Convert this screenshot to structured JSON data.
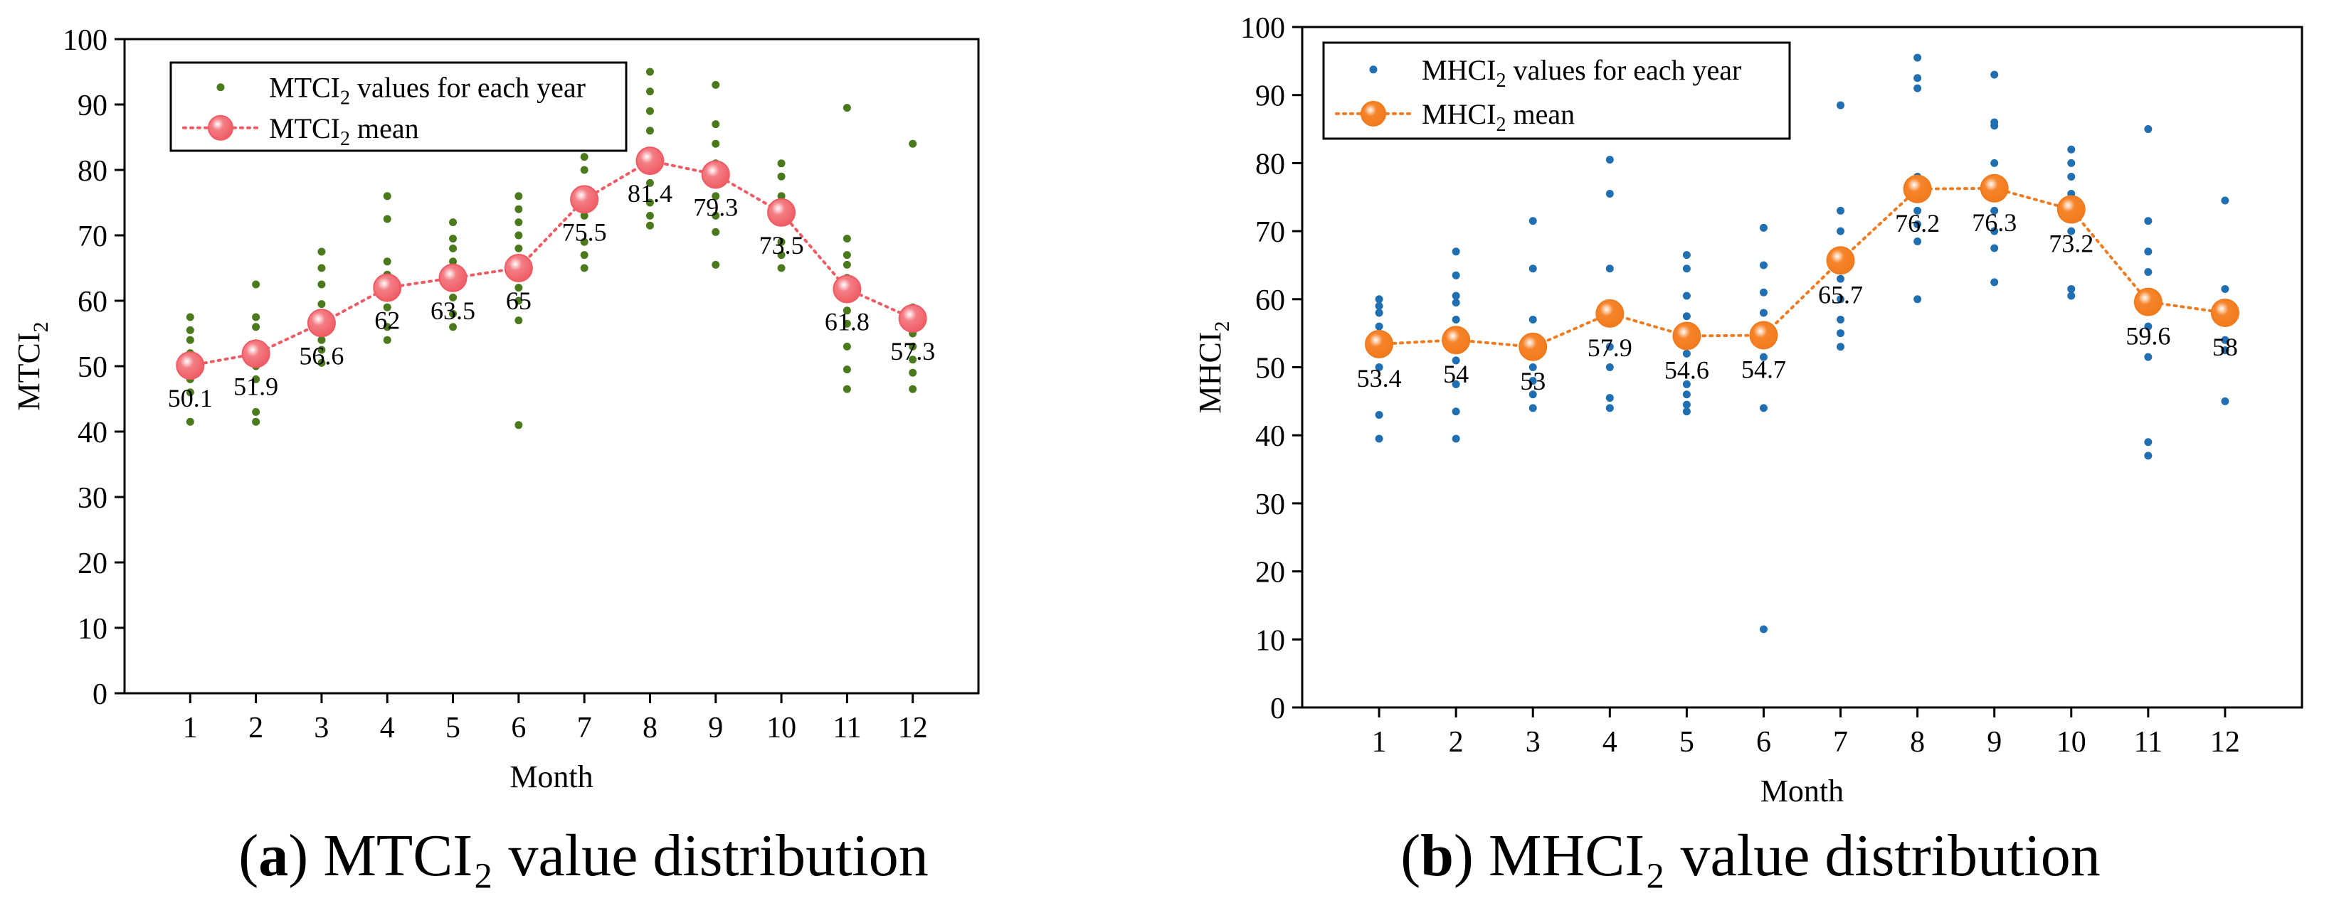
{
  "chart_data": [
    {
      "type": "scatter",
      "panel_letter": "a",
      "caption_rest": "MTCI₂ value distribution",
      "xlabel": "Month",
      "ylabel_base": "MTCI",
      "ylabel_sub": "2",
      "categories": [
        "1",
        "2",
        "3",
        "4",
        "5",
        "6",
        "7",
        "8",
        "9",
        "10",
        "11",
        "12"
      ],
      "ylim": [
        0,
        100
      ],
      "yticks": [
        "0",
        "10",
        "20",
        "30",
        "40",
        "50",
        "60",
        "70",
        "80",
        "90",
        "100"
      ],
      "legend": [
        {
          "base": "MTCI",
          "sub": "2",
          "rest": " values for each year"
        },
        {
          "base": "MTCI",
          "sub": "2",
          "rest": " mean"
        }
      ],
      "mean_labels": [
        "50.1",
        "51.9",
        "56.6",
        "62",
        "63.5",
        "65",
        "75.5",
        "81.4",
        "79.3",
        "73.5",
        "61.8",
        "57.3"
      ],
      "series": [
        {
          "name": "MTCI2 mean",
          "values": [
            50.1,
            51.9,
            56.6,
            62,
            63.5,
            65,
            75.5,
            81.4,
            79.3,
            73.5,
            61.8,
            57.3
          ]
        },
        {
          "name": "MTCI2 values for each year",
          "points": [
            [
              41.5,
              46,
              48,
              50,
              52,
              54,
              55.5,
              57.5
            ],
            [
              41.5,
              43,
              48,
              50,
              53.5,
              56,
              57.5,
              62.5
            ],
            [
              50.5,
              52.5,
              54,
              57.5,
              59.5,
              62.5,
              65,
              67.5
            ],
            [
              54,
              56,
              59,
              61,
              64,
              66,
              72.5,
              76
            ],
            [
              56,
              58,
              60.5,
              62,
              64,
              66,
              68,
              69.5,
              72
            ],
            [
              41,
              57,
              60,
              62,
              66,
              68,
              70,
              72,
              74,
              76
            ],
            [
              65,
              67,
              69,
              73,
              77,
              80,
              82
            ],
            [
              71.5,
              73,
              75,
              78,
              86,
              89,
              92,
              95
            ],
            [
              65.5,
              70.5,
              73,
              76,
              78,
              81,
              84,
              87,
              93
            ],
            [
              65,
              67,
              69,
              72,
              74,
              76,
              79,
              81
            ],
            [
              46.5,
              49.5,
              53,
              56.5,
              58.5,
              63.5,
              65.5,
              67,
              69.5,
              89.5
            ],
            [
              46.5,
              49,
              51,
              53,
              55,
              57,
              59,
              84
            ]
          ]
        }
      ],
      "colors": {
        "points": "#4a7a1c",
        "mean_fill": "#f47d84",
        "mean_line": "#ef5a63"
      }
    },
    {
      "type": "scatter",
      "panel_letter": "b",
      "caption_rest": "MHCI₂ value distribution",
      "xlabel": "Month",
      "ylabel_base": "MHCI",
      "ylabel_sub": "2",
      "categories": [
        "1",
        "2",
        "3",
        "4",
        "5",
        "6",
        "7",
        "8",
        "9",
        "10",
        "11",
        "12"
      ],
      "ylim": [
        0,
        100
      ],
      "yticks": [
        "0",
        "10",
        "20",
        "30",
        "40",
        "50",
        "60",
        "70",
        "80",
        "90",
        "100"
      ],
      "legend": [
        {
          "base": "MHCI",
          "sub": "2",
          "rest": " values for each year"
        },
        {
          "base": "MHCI",
          "sub": "2",
          "rest": " mean"
        }
      ],
      "mean_labels": [
        "53.4",
        "54",
        "53",
        "57.9",
        "54.6",
        "54.7",
        "65.7",
        "76.2",
        "76.3",
        "73.2",
        "59.6",
        "58"
      ],
      "series": [
        {
          "name": "MHCI2 mean",
          "values": [
            53.4,
            54,
            53,
            57.9,
            54.6,
            54.7,
            65.7,
            76.2,
            76.3,
            73.2,
            59.6,
            58
          ]
        },
        {
          "name": "MHCI2 values for each year",
          "points": [
            [
              39.5,
              43,
              50,
              53,
              56,
              58,
              59,
              60
            ],
            [
              39.5,
              43.5,
              47.5,
              51,
              55,
              57,
              59.5,
              60.5,
              63.5,
              67
            ],
            [
              44,
              46,
              48,
              50,
              53.5,
              57,
              64.5,
              71.5
            ],
            [
              44,
              45.5,
              50,
              53,
              58.5,
              64.5,
              75.5,
              80.5
            ],
            [
              43.5,
              44.5,
              46,
              47.5,
              52,
              55,
              57.5,
              60.5,
              64.5,
              66.5
            ],
            [
              11.5,
              44,
              51.5,
              58,
              61,
              65,
              70.5
            ],
            [
              53,
              55,
              57,
              60,
              63,
              67,
              70,
              73,
              88.5
            ],
            [
              60,
              68.5,
              71,
              73,
              75.5,
              78,
              91,
              92.5,
              95.5
            ],
            [
              62.5,
              67.5,
              70,
              73,
              75,
              80,
              85.5,
              86,
              93
            ],
            [
              60.5,
              61.5,
              70,
              73,
              75.5,
              78,
              80,
              82
            ],
            [
              37,
              39,
              51.5,
              56,
              60,
              64,
              67,
              71.5,
              85
            ],
            [
              45,
              52.5,
              54,
              58,
              61.5,
              74.5
            ]
          ]
        }
      ],
      "colors": {
        "points": "#1f6fb2",
        "mean_fill": "#f7842a",
        "mean_line": "#f07a1e"
      }
    }
  ]
}
